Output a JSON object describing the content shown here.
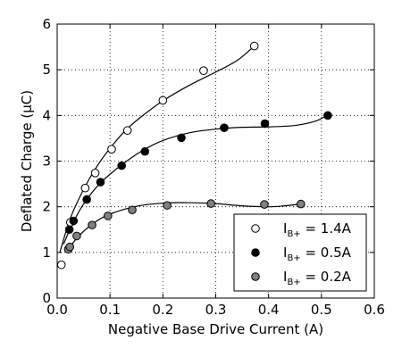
{
  "chart_data": {
    "type": "scatter",
    "title": "",
    "xlabel": "Negative Base Drive Current (A)",
    "ylabel": "Deflated Charge (μC)",
    "xlim": [
      0,
      0.6
    ],
    "ylim": [
      0,
      6
    ],
    "xticks": [
      "0.0",
      "0.1",
      "0.2",
      "0.3",
      "0.4",
      "0.5",
      "0.6"
    ],
    "yticks": [
      "0",
      "1",
      "2",
      "3",
      "4",
      "5",
      "6"
    ],
    "grid": true,
    "legend_position": "lower-right",
    "series": [
      {
        "legend_main": "I",
        "legend_sub": "B+",
        "legend_value": " = 1.4A",
        "marker_fill": "#ffffff",
        "points": [
          [
            0.008,
            0.73
          ],
          [
            0.025,
            1.66
          ],
          [
            0.053,
            2.41
          ],
          [
            0.072,
            2.74
          ],
          [
            0.103,
            3.26
          ],
          [
            0.133,
            3.67
          ],
          [
            0.2,
            4.33
          ],
          [
            0.277,
            4.98
          ],
          [
            0.373,
            5.52
          ]
        ],
        "curve": [
          [
            0.005,
            1.0
          ],
          [
            0.025,
            1.75
          ],
          [
            0.05,
            2.38
          ],
          [
            0.075,
            2.88
          ],
          [
            0.1,
            3.28
          ],
          [
            0.13,
            3.68
          ],
          [
            0.16,
            3.98
          ],
          [
            0.2,
            4.32
          ],
          [
            0.25,
            4.66
          ],
          [
            0.3,
            4.95
          ],
          [
            0.34,
            5.2
          ],
          [
            0.373,
            5.52
          ]
        ]
      },
      {
        "legend_main": "I",
        "legend_sub": "B+",
        "legend_value": " = 0.5A",
        "marker_fill": "#000000",
        "points": [
          [
            0.023,
            1.5
          ],
          [
            0.031,
            1.69
          ],
          [
            0.056,
            2.16
          ],
          [
            0.082,
            2.54
          ],
          [
            0.122,
            2.9
          ],
          [
            0.166,
            3.21
          ],
          [
            0.235,
            3.51
          ],
          [
            0.316,
            3.73
          ],
          [
            0.393,
            3.82
          ],
          [
            0.512,
            4.0
          ]
        ],
        "curve": [
          [
            0.012,
            1.18
          ],
          [
            0.03,
            1.65
          ],
          [
            0.05,
            2.06
          ],
          [
            0.08,
            2.5
          ],
          [
            0.12,
            2.9
          ],
          [
            0.16,
            3.22
          ],
          [
            0.2,
            3.45
          ],
          [
            0.25,
            3.62
          ],
          [
            0.3,
            3.7
          ],
          [
            0.35,
            3.74
          ],
          [
            0.4,
            3.75
          ],
          [
            0.45,
            3.78
          ],
          [
            0.49,
            3.88
          ],
          [
            0.512,
            4.02
          ]
        ]
      },
      {
        "legend_main": "I",
        "legend_sub": "B+",
        "legend_value": " = 0.2A",
        "marker_fill": "#808080",
        "points": [
          [
            0.021,
            1.07
          ],
          [
            0.024,
            1.12
          ],
          [
            0.037,
            1.36
          ],
          [
            0.066,
            1.6
          ],
          [
            0.096,
            1.8
          ],
          [
            0.142,
            1.93
          ],
          [
            0.208,
            2.03
          ],
          [
            0.291,
            2.07
          ],
          [
            0.392,
            2.05
          ],
          [
            0.461,
            2.06
          ]
        ],
        "curve": [
          [
            0.018,
            1.02
          ],
          [
            0.04,
            1.35
          ],
          [
            0.07,
            1.65
          ],
          [
            0.1,
            1.84
          ],
          [
            0.15,
            2.01
          ],
          [
            0.2,
            2.08
          ],
          [
            0.25,
            2.09
          ],
          [
            0.3,
            2.07
          ],
          [
            0.35,
            2.02
          ],
          [
            0.4,
            2.0
          ],
          [
            0.43,
            2.02
          ],
          [
            0.461,
            2.06
          ]
        ]
      }
    ]
  }
}
